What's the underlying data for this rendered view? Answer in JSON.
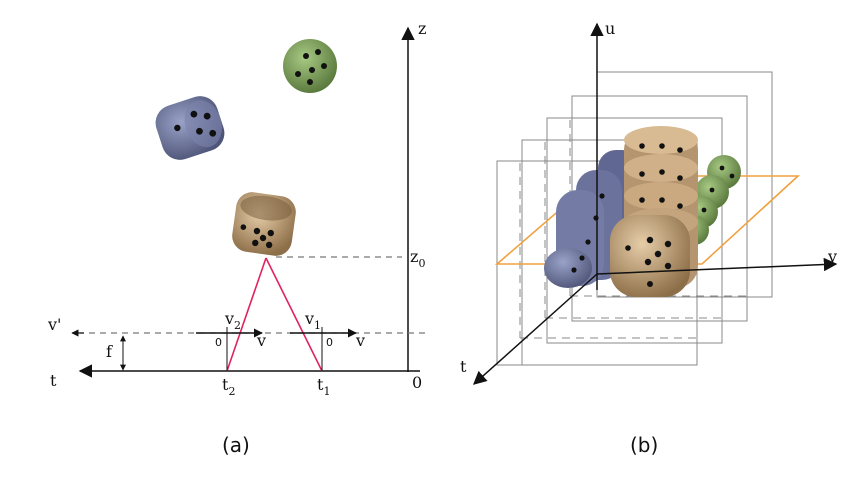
{
  "panel_a": {
    "caption": "(a)",
    "axis_z": "z",
    "axis_t": "t",
    "origin": "0",
    "z0_main": "z",
    "z0_sub": "0",
    "v_prime": "v'",
    "f": "f",
    "v2_main": "v",
    "v2_sub": "2",
    "v1_main": "v",
    "v1_sub": "1",
    "v_left": "v",
    "v_right": "v",
    "zero_left": "0",
    "zero_right": "0",
    "t2_main": "t",
    "t2_sub": "2",
    "t1_main": "t",
    "t1_sub": "1"
  },
  "panel_b": {
    "caption": "(b)",
    "axis_u": "u",
    "axis_v": "v",
    "axis_t": "t"
  },
  "colors": {
    "ray": "#e0245e",
    "plane": "#f0a040",
    "blue_die": "#6b739c",
    "green_die": "#7fa05a",
    "tan_die": "#c4a47c",
    "frame": "#888888"
  },
  "icons": [
    "blue-die-icon",
    "green-die-icon",
    "tan-die-icon"
  ]
}
